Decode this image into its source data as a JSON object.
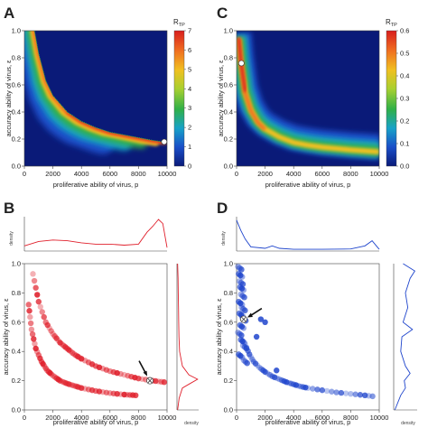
{
  "panels": [
    {
      "letter": "A",
      "xlabel": "proliferative ability of virus, p",
      "ylabel": "accuracy ability of virus, ε",
      "colorbar_label": "R",
      "colorbar_sub": "TP"
    },
    {
      "letter": "C",
      "xlabel": "proliferative ability of virus, p",
      "ylabel": "accuracy ability of virus, ε",
      "colorbar_label": "R",
      "colorbar_sub": "TP"
    },
    {
      "letter": "B",
      "xlabel": "proliferative ability of virus, p",
      "ylabel": "accuracy ability of virus, ε",
      "density_label": "density"
    },
    {
      "letter": "D",
      "xlabel": "proliferative ability of virus, p",
      "ylabel": "accuracy ability of virus, ε",
      "density_label": "density"
    }
  ],
  "colors": {
    "B": "#e0202c",
    "D": "#1e44cc",
    "heat": [
      "#0a1a78",
      "#1a4ec8",
      "#17a2c8",
      "#30b048",
      "#a8d030",
      "#f0c020",
      "#f07020",
      "#d81e1e"
    ]
  },
  "chart_data": [
    {
      "panel": "A",
      "type": "heatmap",
      "xlabel": "proliferative ability of virus, p",
      "ylabel": "accuracy ability of virus, ε",
      "xlim": [
        0,
        10000
      ],
      "ylim": [
        0,
        1
      ],
      "xticks": [
        "0",
        "2000",
        "4000",
        "6000",
        "8000",
        "10000"
      ],
      "yticks": [
        "0.0",
        "0.2",
        "0.4",
        "0.6",
        "0.8",
        "1.0"
      ],
      "colorbar": {
        "label": "RTP",
        "range": [
          0,
          7
        ],
        "ticks": [
          "0",
          "1",
          "2",
          "3",
          "4",
          "5",
          "6",
          "7"
        ]
      },
      "ridge_curve": {
        "x": [
          700,
          1000,
          1500,
          2000,
          3000,
          4000,
          5000,
          6000,
          7000,
          8000,
          9000,
          10000
        ],
        "y": [
          1.0,
          0.83,
          0.63,
          0.52,
          0.4,
          0.33,
          0.285,
          0.25,
          0.23,
          0.21,
          0.19,
          0.175
        ]
      },
      "ridge_peak": 6.5,
      "optimum_point": {
        "x": 9800,
        "y": 0.18
      }
    },
    {
      "panel": "C",
      "type": "heatmap",
      "xlabel": "proliferative ability of virus, p",
      "ylabel": "accuracy ability of virus, ε",
      "xlim": [
        0,
        10000
      ],
      "ylim": [
        0,
        1
      ],
      "xticks": [
        "0",
        "2000",
        "4000",
        "6000",
        "8000",
        "10000"
      ],
      "yticks": [
        "0.0",
        "0.2",
        "0.4",
        "0.6",
        "0.8",
        "1.0"
      ],
      "colorbar": {
        "label": "RTP",
        "range": [
          0,
          0.6
        ],
        "ticks": [
          "0.0",
          "0.1",
          "0.2",
          "0.3",
          "0.4",
          "0.5",
          "0.6"
        ]
      },
      "ridge_curve": {
        "x": [
          150,
          300,
          600,
          1000,
          1500,
          2000,
          3000,
          4000,
          5000,
          6000,
          7000,
          8000,
          9000,
          10000
        ],
        "y": [
          0.95,
          0.78,
          0.55,
          0.42,
          0.33,
          0.28,
          0.22,
          0.18,
          0.16,
          0.145,
          0.135,
          0.125,
          0.118,
          0.11
        ]
      },
      "ridge_peak": 0.6,
      "optimum_point": {
        "x": 150,
        "y": 0.76
      }
    },
    {
      "panel": "B",
      "type": "scatter",
      "xlabel": "proliferative ability of virus, p",
      "ylabel": "accuracy ability of virus, ε",
      "xlim": [
        0,
        10000
      ],
      "ylim": [
        0,
        1
      ],
      "xticks": [
        "0",
        "2000",
        "4000",
        "6000",
        "8000",
        "10000"
      ],
      "yticks": [
        "0.0",
        "0.2",
        "0.4",
        "0.6",
        "0.8",
        "1.0"
      ],
      "branches": [
        {
          "x": [
            600,
            1000,
            1500,
            2000,
            2500,
            3000,
            3500,
            4000,
            5000,
            6000,
            7000,
            8000,
            9000,
            9800
          ],
          "y": [
            0.93,
            0.74,
            0.6,
            0.52,
            0.46,
            0.42,
            0.38,
            0.35,
            0.3,
            0.265,
            0.24,
            0.215,
            0.2,
            0.19
          ]
        },
        {
          "x": [
            300,
            500,
            800,
            1200,
            1600,
            2000,
            2500,
            3000,
            3500,
            4000,
            5000,
            6000,
            7000,
            7800
          ],
          "y": [
            0.72,
            0.55,
            0.42,
            0.33,
            0.27,
            0.235,
            0.2,
            0.18,
            0.165,
            0.15,
            0.13,
            0.115,
            0.105,
            0.1
          ]
        }
      ],
      "marker": {
        "x": 8800,
        "y": 0.2
      },
      "density_top": {
        "x": [
          0,
          1000,
          2000,
          3000,
          4000,
          5000,
          6000,
          7000,
          8000,
          8600,
          9000,
          9400,
          9700,
          10000
        ],
        "y": [
          0.15,
          0.28,
          0.32,
          0.3,
          0.24,
          0.2,
          0.2,
          0.17,
          0.2,
          0.55,
          0.72,
          0.92,
          0.8,
          0.1
        ]
      },
      "density_right": {
        "y": [
          0,
          0.08,
          0.15,
          0.18,
          0.21,
          0.24,
          0.3,
          0.4,
          0.5,
          0.6,
          0.7,
          0.8,
          0.9,
          1.0
        ],
        "d": [
          0.03,
          0.1,
          0.25,
          0.6,
          0.95,
          0.55,
          0.25,
          0.12,
          0.09,
          0.08,
          0.07,
          0.06,
          0.05,
          0.03
        ]
      }
    },
    {
      "panel": "D",
      "type": "scatter",
      "xlabel": "proliferative ability of virus, p",
      "ylabel": "accuracy ability of virus, ε",
      "xlim": [
        0,
        10000
      ],
      "ylim": [
        0,
        1
      ],
      "xticks": [
        "0",
        "2000",
        "4000",
        "6000",
        "8000",
        "10000"
      ],
      "yticks": [
        "0.0",
        "0.2",
        "0.4",
        "0.6",
        "0.8",
        "1.0"
      ],
      "cluster": {
        "x": [
          100,
          150,
          200,
          250,
          300,
          150,
          350,
          200,
          400,
          250,
          100,
          300,
          450,
          150,
          500
        ],
        "y": [
          0.98,
          0.93,
          0.88,
          0.84,
          0.79,
          0.74,
          0.7,
          0.66,
          0.63,
          0.58,
          0.53,
          0.48,
          0.44,
          0.38,
          0.34
        ]
      },
      "branch": {
        "x": [
          600,
          900,
          1200,
          1600,
          2000,
          2500,
          3000,
          3500,
          4000,
          4500,
          5000,
          6000,
          7000,
          8000,
          9000,
          9800
        ],
        "y": [
          0.45,
          0.38,
          0.33,
          0.29,
          0.26,
          0.23,
          0.21,
          0.19,
          0.175,
          0.16,
          0.15,
          0.135,
          0.12,
          0.11,
          0.1,
          0.09
        ]
      },
      "extra_points": {
        "x": [
          1700,
          2000,
          1400,
          2800
        ],
        "y": [
          0.62,
          0.6,
          0.5,
          0.27
        ]
      },
      "marker": {
        "x": 500,
        "y": 0.62
      },
      "density_top": {
        "x": [
          0,
          300,
          600,
          1000,
          2000,
          2500,
          3000,
          4000,
          6000,
          8000,
          9000,
          9500,
          9800,
          10000
        ],
        "y": [
          0.9,
          0.6,
          0.35,
          0.12,
          0.08,
          0.15,
          0.08,
          0.05,
          0.05,
          0.06,
          0.15,
          0.3,
          0.15,
          0.05
        ]
      },
      "density_right": {
        "y": [
          0,
          0.1,
          0.15,
          0.2,
          0.25,
          0.3,
          0.4,
          0.5,
          0.55,
          0.6,
          0.7,
          0.8,
          0.9,
          0.95,
          1.0
        ],
        "d": [
          0.05,
          0.3,
          0.5,
          0.45,
          0.7,
          0.5,
          0.3,
          0.35,
          0.8,
          0.4,
          0.6,
          0.5,
          0.7,
          0.9,
          0.4
        ]
      }
    }
  ]
}
